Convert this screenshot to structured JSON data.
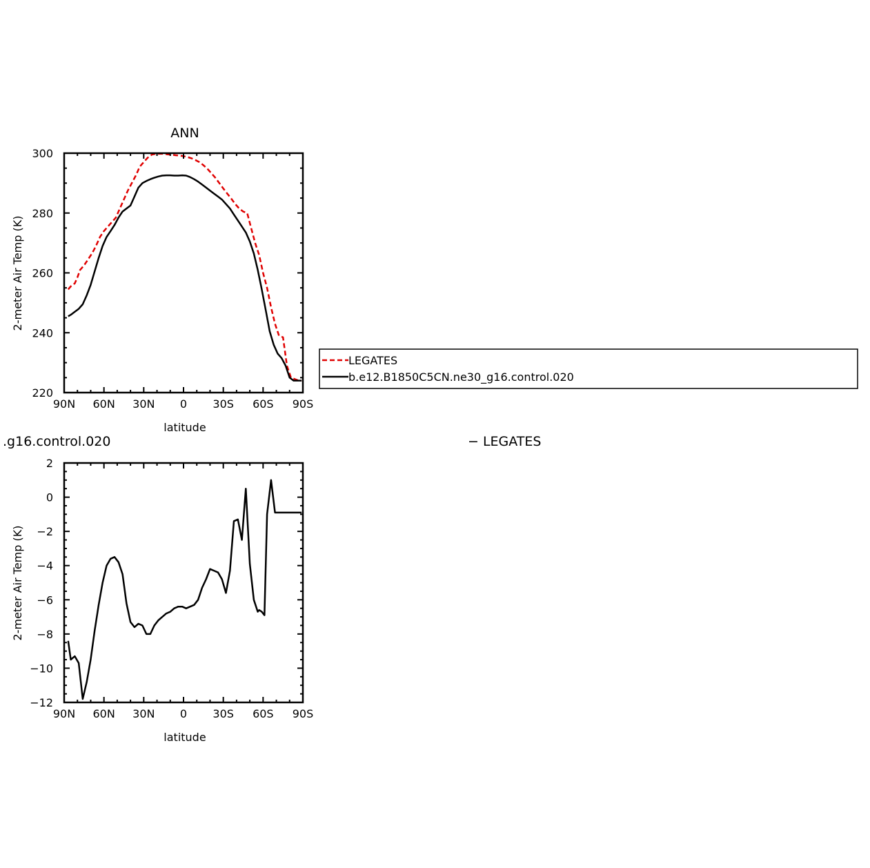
{
  "chart_data": [
    {
      "type": "line",
      "title": "ANN",
      "xlabel": "latitude",
      "ylabel": "2-meter Air Temp (K)",
      "xlim": [
        90,
        -90
      ],
      "ylim": [
        220,
        300
      ],
      "xticks": [
        90,
        60,
        30,
        0,
        -30,
        -60,
        -90
      ],
      "xtick_labels": [
        "90N",
        "60N",
        "30N",
        "0",
        "30S",
        "60S",
        "90S"
      ],
      "yticks": [
        220,
        240,
        260,
        280,
        300
      ],
      "ytick_labels": [
        "220",
        "240",
        "260",
        "280",
        "300"
      ],
      "legend": {
        "placement": "right",
        "entries": [
          "LEGATES",
          "b.e12.B1850C5CN.ne30_g16.control.020"
        ]
      },
      "series": [
        {
          "name": "LEGATES",
          "color": "#e00000",
          "style": "dashed",
          "x": [
            87,
            85,
            82,
            80,
            78,
            75,
            72,
            69,
            66,
            63,
            60,
            57,
            54,
            51,
            48,
            45,
            42,
            39,
            36,
            33,
            30,
            27,
            24,
            21,
            18,
            15,
            12,
            9,
            6,
            3,
            0,
            -3,
            -6,
            -9,
            -12,
            -15,
            -18,
            -21,
            -24,
            -27,
            -30,
            -33,
            -36,
            -39,
            -42,
            -45,
            -48,
            -51,
            -54,
            -57,
            -60,
            -63,
            -66,
            -69,
            -72,
            -75,
            -78,
            -81,
            -84,
            -87,
            -89
          ],
          "y": [
            254.5,
            255.5,
            256.5,
            258.5,
            261.0,
            262.5,
            264.5,
            266.5,
            269.0,
            272.0,
            274.0,
            275.5,
            277.0,
            278.5,
            281.5,
            284.5,
            287.5,
            290.0,
            292.5,
            295.5,
            297.0,
            298.5,
            299.5,
            299.8,
            299.8,
            299.8,
            299.6,
            299.5,
            299.3,
            299.2,
            299.0,
            298.7,
            298.3,
            297.7,
            297.0,
            296.0,
            294.8,
            293.3,
            291.8,
            290.0,
            288.2,
            286.5,
            284.8,
            283.0,
            281.5,
            280.5,
            280.0,
            275.0,
            270.0,
            266.0,
            260.0,
            255.0,
            248.5,
            243.0,
            239.0,
            238.5,
            229.0,
            225.0,
            224.5,
            224.0,
            224.0
          ]
        },
        {
          "name": "b.e12.B1850C5CN.ne30_g16.control.020",
          "color": "#000000",
          "style": "solid",
          "x": [
            87,
            85,
            82,
            79,
            76,
            73,
            70,
            67,
            64,
            61,
            58,
            55,
            52,
            49,
            46,
            43,
            40,
            37,
            34,
            31,
            28,
            25,
            22,
            19,
            16,
            13,
            10,
            7,
            4,
            1,
            -2,
            -5,
            -8,
            -11,
            -14,
            -17,
            -20,
            -23,
            -26,
            -29,
            -32,
            -35,
            -38,
            -41,
            -44,
            -47,
            -50,
            -53,
            -56,
            -59,
            -62,
            -65,
            -68,
            -71,
            -74,
            -77,
            -80,
            -83,
            -86,
            -89
          ],
          "y": [
            245.5,
            246.0,
            247.0,
            248.0,
            249.5,
            252.5,
            256.0,
            260.5,
            265.0,
            269.0,
            272.0,
            274.0,
            276.0,
            278.5,
            280.5,
            281.5,
            282.5,
            285.5,
            288.5,
            290.0,
            290.7,
            291.3,
            291.8,
            292.2,
            292.5,
            292.6,
            292.6,
            292.5,
            292.5,
            292.6,
            292.5,
            292.0,
            291.3,
            290.5,
            289.5,
            288.5,
            287.5,
            286.5,
            285.5,
            284.5,
            283.0,
            281.5,
            279.5,
            277.5,
            275.5,
            273.5,
            270.5,
            266.5,
            261.0,
            254.5,
            247.5,
            240.5,
            236.0,
            233.0,
            231.5,
            229.0,
            225.0,
            224.0,
            224.0,
            224.0
          ]
        }
      ]
    },
    {
      "type": "line",
      "title_fragment": ".g16.control.020",
      "title_fragment_right": "− LEGATES",
      "xlabel": "latitude",
      "ylabel": "2-meter Air Temp (K)",
      "xlim": [
        90,
        -90
      ],
      "ylim": [
        -12,
        2
      ],
      "xticks": [
        90,
        60,
        30,
        0,
        -30,
        -60,
        -90
      ],
      "xtick_labels": [
        "90N",
        "60N",
        "30N",
        "0",
        "30S",
        "60S",
        "90S"
      ],
      "yticks": [
        -12,
        -10,
        -8,
        -6,
        -4,
        -2,
        0,
        2
      ],
      "ytick_labels": [
        "−12",
        "−10",
        "−8",
        "−6",
        "−4",
        "−2",
        "0",
        "2"
      ],
      "series": [
        {
          "color": "#000000",
          "style": "solid",
          "x": [
            87,
            85,
            82,
            79,
            76,
            73,
            70,
            67,
            64,
            61,
            58,
            55,
            52,
            49,
            46,
            43,
            40,
            37,
            34,
            31,
            28,
            25,
            22,
            19,
            16,
            13,
            10,
            7,
            4,
            1,
            -2,
            -5,
            -8,
            -11,
            -14,
            -17,
            -20,
            -23,
            -26,
            -29,
            -32,
            -35,
            -38,
            -41,
            -44,
            -47,
            -50,
            -53,
            -56,
            -57,
            -59,
            -61,
            -63,
            -66,
            -69,
            -72,
            -75,
            -78,
            -81,
            -84,
            -87,
            -89
          ],
          "y": [
            -8.4,
            -9.5,
            -9.3,
            -9.7,
            -11.8,
            -10.8,
            -9.5,
            -7.8,
            -6.3,
            -5.0,
            -4.0,
            -3.6,
            -3.5,
            -3.8,
            -4.5,
            -6.2,
            -7.3,
            -7.6,
            -7.4,
            -7.5,
            -8.0,
            -8.0,
            -7.5,
            -7.2,
            -7.0,
            -6.8,
            -6.7,
            -6.5,
            -6.4,
            -6.4,
            -6.5,
            -6.4,
            -6.3,
            -6.0,
            -5.3,
            -4.8,
            -4.2,
            -4.3,
            -4.4,
            -4.8,
            -5.6,
            -4.3,
            -1.4,
            -1.3,
            -2.5,
            0.5,
            -3.9,
            -6.0,
            -6.7,
            -6.6,
            -6.7,
            -6.9,
            -1.0,
            1.0,
            -0.9,
            -0.9,
            -0.9,
            -0.9,
            -0.9,
            -0.9,
            -0.9,
            -0.9
          ]
        }
      ]
    }
  ]
}
